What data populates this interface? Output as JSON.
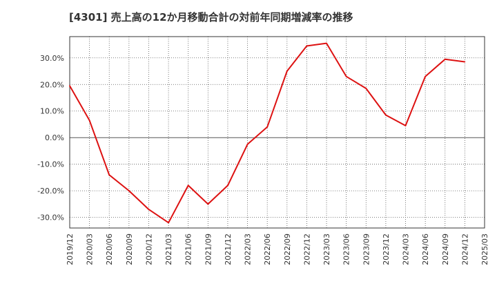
{
  "chart_data": {
    "type": "line",
    "title": "[4301]  売上高の12か月移動合計の対前年同期増減率の推移",
    "xlabel": "",
    "ylabel": "",
    "ylim": [
      -34,
      38
    ],
    "y_ticks": [
      -30,
      -20,
      -10,
      0,
      10,
      20,
      30
    ],
    "y_tick_labels": [
      "-30.0%",
      "-20.0%",
      "-10.0%",
      "0.0%",
      "10.0%",
      "20.0%",
      "30.0%"
    ],
    "x_tick_labels": [
      "2019/12",
      "2020/03",
      "2020/06",
      "2020/09",
      "2020/12",
      "2021/03",
      "2021/06",
      "2021/09",
      "2021/12",
      "2022/03",
      "2022/06",
      "2022/09",
      "2022/12",
      "2023/03",
      "2023/06",
      "2023/09",
      "2023/12",
      "2024/03",
      "2024/06",
      "2024/09",
      "2024/12",
      "2025/03"
    ],
    "series": [
      {
        "name": "増減率",
        "color": "#dd1111",
        "values": [
          19.5,
          6.5,
          -14.0,
          -20.0,
          -27.0,
          -32.0,
          -18.0,
          -25.0,
          -18.0,
          -2.5,
          4.0,
          25.0,
          34.5,
          35.5,
          23.0,
          18.5,
          8.5,
          4.5,
          23.0,
          29.5,
          28.5
        ]
      }
    ],
    "grid": true
  }
}
